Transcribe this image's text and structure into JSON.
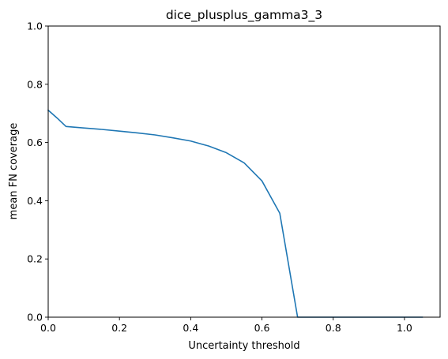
{
  "chart_data": {
    "type": "line",
    "title": "dice_plusplus_gamma3_3",
    "xlabel": "Uncertainty threshold",
    "ylabel": "mean FN coverage",
    "xlim": [
      0.0,
      1.1
    ],
    "ylim": [
      0.0,
      1.0
    ],
    "xticks": [
      0.0,
      0.2,
      0.4,
      0.6,
      0.8,
      1.0
    ],
    "xtick_labels": [
      "0.0",
      "0.2",
      "0.4",
      "0.6",
      "0.8",
      "1.0"
    ],
    "yticks": [
      0.0,
      0.2,
      0.4,
      0.6,
      0.8,
      1.0
    ],
    "ytick_labels": [
      "0.0",
      "0.2",
      "0.4",
      "0.6",
      "0.8",
      "1.0"
    ],
    "grid": false,
    "series": [
      {
        "color": "#1f77b4",
        "x": [
          0.0,
          0.025,
          0.05,
          0.1,
          0.15,
          0.2,
          0.25,
          0.3,
          0.35,
          0.4,
          0.45,
          0.5,
          0.55,
          0.6,
          0.65,
          0.7,
          0.75,
          0.8,
          0.85,
          0.9,
          0.95,
          1.0,
          1.05
        ],
        "y": [
          0.711,
          0.684,
          0.655,
          0.65,
          0.645,
          0.639,
          0.633,
          0.626,
          0.616,
          0.605,
          0.588,
          0.565,
          0.53,
          0.468,
          0.357,
          0.0,
          0.0,
          0.0,
          0.0,
          0.0,
          0.0,
          0.0,
          0.0
        ]
      }
    ]
  }
}
